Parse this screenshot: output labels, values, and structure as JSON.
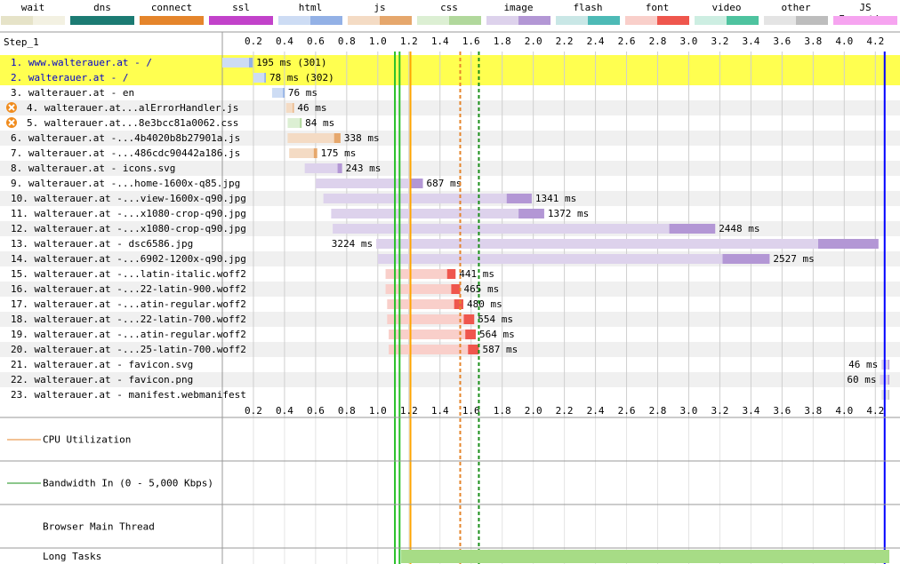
{
  "legend": [
    {
      "label": "wait",
      "colors": [
        "#e6e3c8",
        "#f3f1e2"
      ]
    },
    {
      "label": "dns",
      "colors": [
        "#1c7b73",
        "#1c7b73"
      ]
    },
    {
      "label": "connect",
      "colors": [
        "#e5852b",
        "#e5852b"
      ]
    },
    {
      "label": "ssl",
      "colors": [
        "#c242ca",
        "#c242ca"
      ]
    },
    {
      "label": "html",
      "colors": [
        "#cddcf4",
        "#93b1e6"
      ]
    },
    {
      "label": "js",
      "colors": [
        "#f4dbc4",
        "#e6a76c"
      ]
    },
    {
      "label": "css",
      "colors": [
        "#dcefd3",
        "#b1d89c"
      ]
    },
    {
      "label": "image",
      "colors": [
        "#ddd2ec",
        "#b397d5"
      ]
    },
    {
      "label": "flash",
      "colors": [
        "#c9e7e6",
        "#4dbab6"
      ]
    },
    {
      "label": "font",
      "colors": [
        "#f9cfca",
        "#ef564d"
      ]
    },
    {
      "label": "video",
      "colors": [
        "#cdeee2",
        "#4ec39f"
      ]
    },
    {
      "label": "other",
      "colors": [
        "#e4e4e4",
        "#bdbdbd"
      ]
    },
    {
      "label": "JS Execution",
      "colors": [
        "#f6a4f0",
        "#f6a4f0"
      ]
    }
  ],
  "step_label": "Step_1",
  "axis": {
    "ticks": [
      "0.2",
      "0.4",
      "0.6",
      "0.8",
      "1.0",
      "1.2",
      "1.4",
      "1.6",
      "1.8",
      "2.0",
      "2.2",
      "2.4",
      "2.6",
      "2.8",
      "3.0",
      "3.2",
      "3.4",
      "3.6",
      "3.8",
      "4.0",
      "4.2"
    ],
    "tick_values": [
      0.2,
      0.4,
      0.6,
      0.8,
      1.0,
      1.2,
      1.4,
      1.6,
      1.8,
      2.0,
      2.2,
      2.4,
      2.6,
      2.8,
      3.0,
      3.2,
      3.4,
      3.6,
      3.8,
      4.0,
      4.2
    ],
    "range": [
      0,
      4.29
    ]
  },
  "markers": [
    {
      "t": 1.11,
      "color": "#28c028"
    },
    {
      "t": 1.14,
      "color": "#28c028"
    },
    {
      "t": 1.21,
      "color": "#ffa500"
    },
    {
      "t": 1.53,
      "color": "#e5852b",
      "dashed": true
    },
    {
      "t": 1.65,
      "color": "#1a8f1a",
      "dashed": true
    },
    {
      "t": 4.26,
      "color": "#0000ff"
    }
  ],
  "requests": [
    {
      "label": "1. www.walterauer.at - /",
      "type": "html",
      "start": 0.0,
      "end": 0.195,
      "time": "195 ms (301)",
      "highlight": true,
      "link": true
    },
    {
      "label": "2. walterauer.at - /",
      "type": "html",
      "start": 0.2,
      "end": 0.28,
      "time": "78 ms (302)",
      "highlight": true,
      "link": true
    },
    {
      "label": "3. walterauer.at - en",
      "type": "html",
      "start": 0.32,
      "end": 0.4,
      "time": "76 ms"
    },
    {
      "label": "4. walterauer.at...alErrorHandler.js",
      "type": "js",
      "start": 0.41,
      "end": 0.46,
      "time": "46 ms",
      "error": true
    },
    {
      "label": "5. walterauer.at...8e3bcc81a0062.css",
      "type": "css",
      "start": 0.42,
      "end": 0.51,
      "time": "84 ms",
      "error": true
    },
    {
      "label": "6. walterauer.at -...4b4020b8b27901a.js",
      "type": "js",
      "start": 0.42,
      "end": 0.76,
      "time": "338 ms"
    },
    {
      "label": "7. walterauer.at -...486cdc90442a186.js",
      "type": "js",
      "start": 0.43,
      "end": 0.61,
      "time": "175 ms"
    },
    {
      "label": "8. walterauer.at - icons.svg",
      "type": "image",
      "start": 0.53,
      "end": 0.77,
      "time": "243 ms"
    },
    {
      "label": "9. walterauer.at -...home-1600x-q85.jpg",
      "type": "image",
      "start": 0.6,
      "end": 1.29,
      "time": "687 ms"
    },
    {
      "label": "10. walterauer.at -...view-1600x-q90.jpg",
      "type": "image",
      "start": 0.65,
      "end": 1.99,
      "time": "1341 ms"
    },
    {
      "label": "11. walterauer.at -...x1080-crop-q90.jpg",
      "type": "image",
      "start": 0.7,
      "end": 2.07,
      "time": "1372 ms"
    },
    {
      "label": "12. walterauer.at -...x1080-crop-q90.jpg",
      "type": "image",
      "start": 0.71,
      "end": 3.17,
      "time": "2448 ms"
    },
    {
      "label": "13. walterauer.at - dsc6586.jpg",
      "type": "image",
      "start": 0.99,
      "end": 4.22,
      "time": "3224 ms",
      "time_left": true
    },
    {
      "label": "14. walterauer.at -...6902-1200x-q90.jpg",
      "type": "image",
      "start": 1.0,
      "end": 3.52,
      "time": "2527 ms"
    },
    {
      "label": "15. walterauer.at -...latin-italic.woff2",
      "type": "font",
      "start": 1.05,
      "end": 1.5,
      "time": "441 ms"
    },
    {
      "label": "16. walterauer.at -...22-latin-900.woff2",
      "type": "font",
      "start": 1.05,
      "end": 1.53,
      "time": "465 ms"
    },
    {
      "label": "17. walterauer.at -...atin-regular.woff2",
      "type": "font",
      "start": 1.06,
      "end": 1.55,
      "time": "480 ms"
    },
    {
      "label": "18. walterauer.at -...22-latin-700.woff2",
      "type": "font",
      "start": 1.06,
      "end": 1.62,
      "time": "554 ms"
    },
    {
      "label": "19. walterauer.at -...atin-regular.woff2",
      "type": "font",
      "start": 1.07,
      "end": 1.63,
      "time": "564 ms"
    },
    {
      "label": "20. walterauer.at -...25-latin-700.woff2",
      "type": "font",
      "start": 1.07,
      "end": 1.65,
      "time": "587 ms"
    },
    {
      "label": "21. walterauer.at - favicon.svg",
      "type": "image",
      "start": 4.24,
      "end": 4.29,
      "time": "46 ms",
      "time_left": true
    },
    {
      "label": "22. walterauer.at - favicon.png",
      "type": "image",
      "start": 4.23,
      "end": 4.29,
      "time": "60 ms",
      "time_left": true
    },
    {
      "label": "23. walterauer.at - manifest.webmanifest",
      "type": "other",
      "start": 4.24,
      "end": 4.29,
      "time": ""
    }
  ],
  "panels": {
    "cpu": "CPU Utilization",
    "bandwidth": "Bandwidth In (0 - 5,000 Kbps)",
    "main_thread": "Browser Main Thread",
    "long_tasks": "Long Tasks"
  }
}
